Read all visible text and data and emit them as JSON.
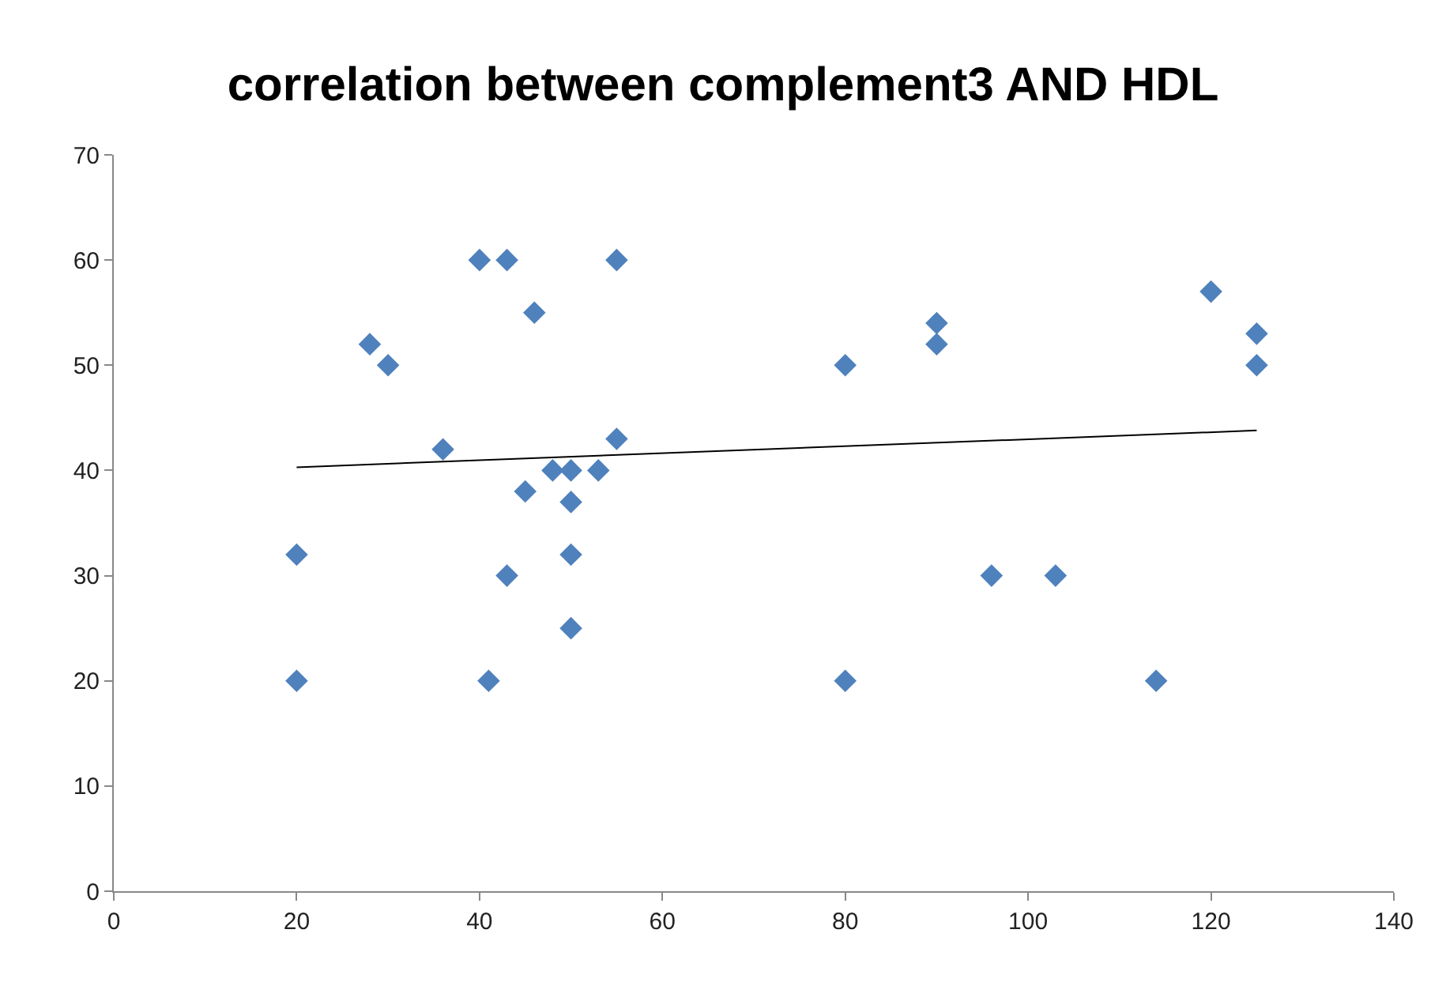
{
  "chart_data": {
    "type": "scatter",
    "title": "correlation between complement3 AND HDL",
    "xlim": [
      0,
      140
    ],
    "xticks": [
      0,
      20,
      40,
      60,
      80,
      100,
      120,
      140
    ],
    "ylim": [
      0,
      70
    ],
    "yticks": [
      0,
      10,
      20,
      30,
      40,
      50,
      60,
      70
    ],
    "series": [
      {
        "marker": "diamond",
        "color": "#4f81bd",
        "x": [
          20,
          20,
          28,
          30,
          36,
          40,
          43,
          41,
          43,
          46,
          45,
          48,
          50,
          50,
          50,
          50,
          53,
          55,
          55,
          80,
          80,
          90,
          90,
          96,
          103,
          114,
          120,
          125,
          125
        ],
        "values": [
          20,
          32,
          52,
          50,
          42,
          60,
          60,
          20,
          30,
          55,
          38,
          40,
          40,
          37,
          32,
          25,
          40,
          60,
          43,
          50,
          20,
          54,
          52,
          30,
          30,
          20,
          57,
          53,
          50
        ]
      },
      {
        "type": "line",
        "marker": "none",
        "color": "#000000",
        "line_style": "solid",
        "x": [
          20,
          125
        ],
        "values": [
          40.3,
          43.8
        ]
      }
    ]
  }
}
